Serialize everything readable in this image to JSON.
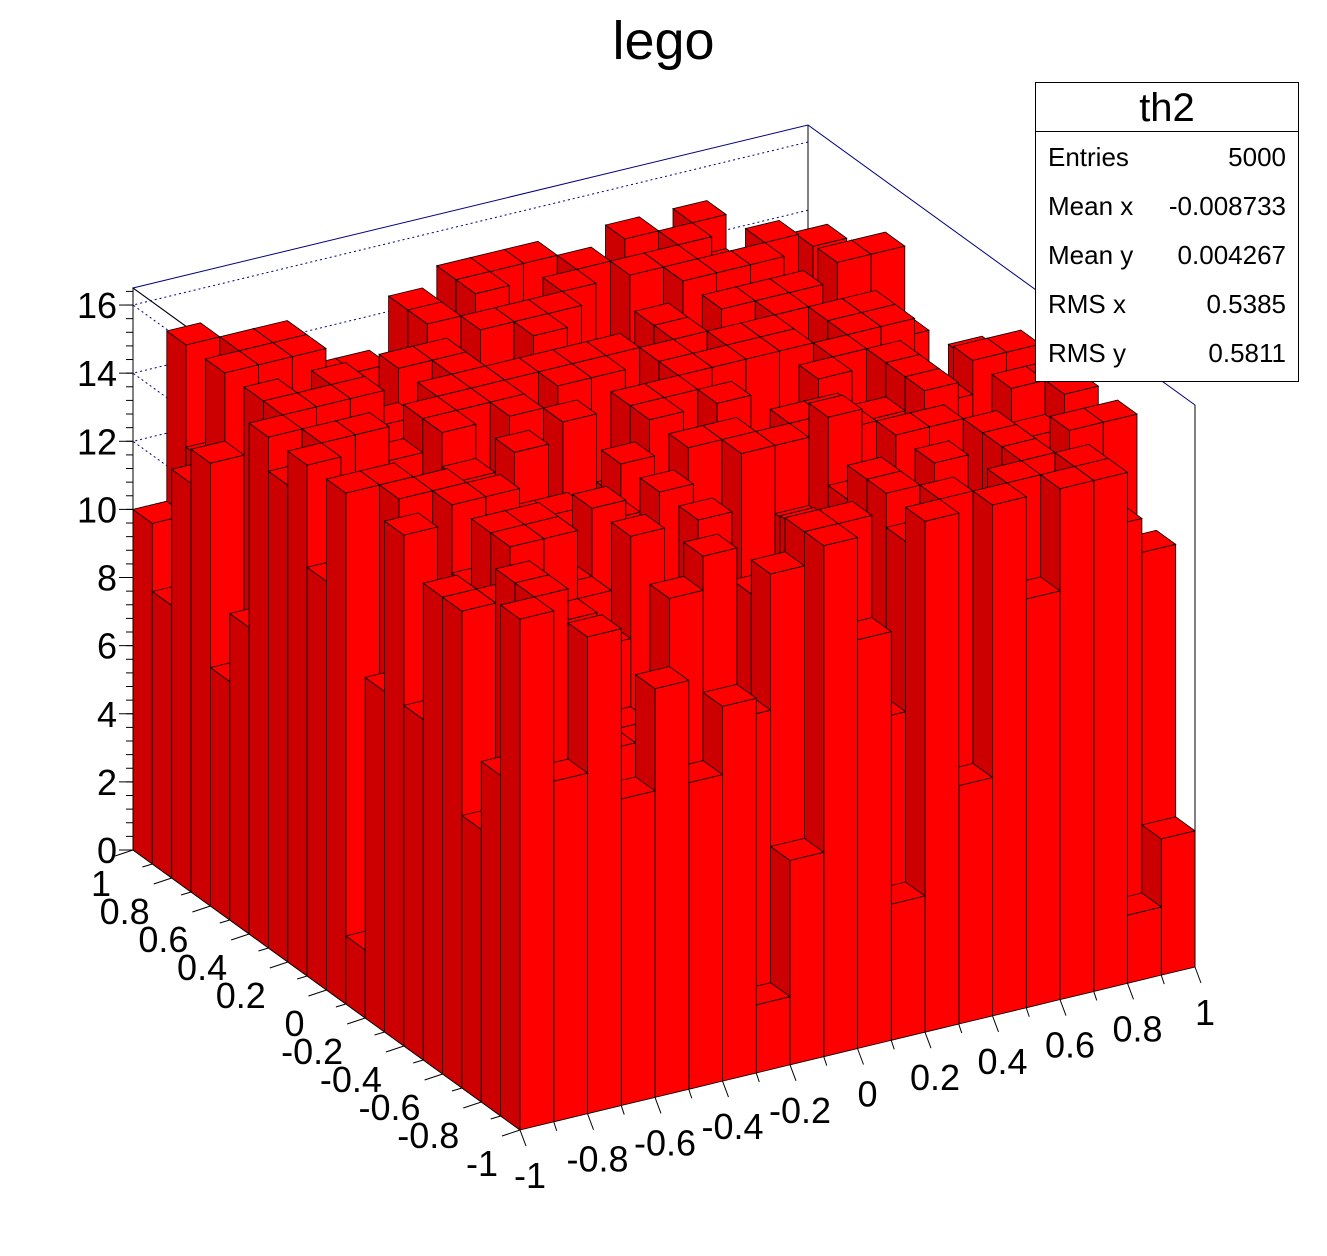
{
  "chart_data": {
    "type": "lego",
    "title": "lego",
    "bar_color": "#ff0000",
    "bar_edge_color": "#000000",
    "frame_color": "#000080",
    "nbins_x": 20,
    "nbins_y": 20,
    "xlim": [
      -1,
      1
    ],
    "ylim": [
      -1,
      1
    ],
    "zlim": [
      0,
      16.5
    ],
    "x_ticks": [
      "-1",
      "-0.8",
      "-0.6",
      "-0.4",
      "-0.2",
      "0",
      "0.2",
      "0.4",
      "0.6",
      "0.8",
      "1"
    ],
    "y_ticks": [
      "-1",
      "-0.8",
      "-0.6",
      "-0.4",
      "-0.2",
      "0",
      "0.2",
      "0.4",
      "0.6",
      "0.8",
      "1"
    ],
    "z_ticks": [
      "0",
      "2",
      "4",
      "6",
      "8",
      "10",
      "12",
      "14",
      "16"
    ],
    "grid": true,
    "stats": {
      "title": "th2",
      "rows": [
        {
          "label": "Entries",
          "value": "5000"
        },
        {
          "label": "Mean x",
          "value": "-0.008733"
        },
        {
          "label": "Mean y",
          "value": "0.004267"
        },
        {
          "label": "RMS x",
          "value": "0.5385"
        },
        {
          "label": "RMS y",
          "value": "0.5811"
        }
      ]
    }
  }
}
